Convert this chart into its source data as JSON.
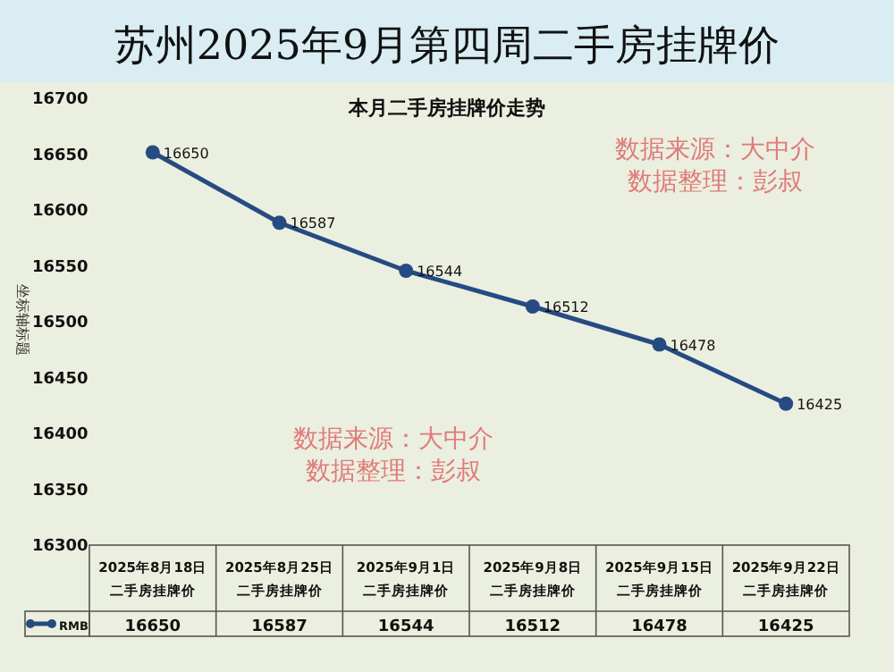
{
  "chart_data": {
    "type": "line",
    "title": "苏州2025年9月第四周二手房挂牌价",
    "subtitle": "本月二手房挂牌价走势",
    "ylabel": "坐标轴标题",
    "categories": [
      "2025年8月18日二手房挂牌价",
      "2025年8月25日二手房挂牌价",
      "2025年9月1日二手房挂牌价",
      "2025年9月8日二手房挂牌价",
      "2025年9月15日二手房挂牌价",
      "2025年9月22日二手房挂牌价"
    ],
    "series": [
      {
        "name": "RMB",
        "color": "#254b82",
        "values": [
          16650,
          16587,
          16544,
          16512,
          16478,
          16425
        ]
      }
    ],
    "ylim": [
      16300,
      16700
    ],
    "yticks": [
      16300,
      16350,
      16400,
      16450,
      16500,
      16550,
      16600,
      16650,
      16700
    ],
    "grid": false,
    "legend": "bottom",
    "marker": "circle",
    "line_style": "solid",
    "data_labels": true,
    "annotations": [
      "数据来源：大中介",
      "数据整理：彭叔",
      "数据来源：大中介",
      "数据整理：彭叔",
      {
        "text": "16650",
        "x": "2025年8月18日二手房挂牌价"
      },
      {
        "text": "16587",
        "x": "2025年8月25日二手房挂牌价"
      },
      {
        "text": "16544",
        "x": "2025年9月1日二手房挂牌价"
      },
      {
        "text": "16512",
        "x": "2025年9月8日二手房挂牌价"
      },
      {
        "text": "16478",
        "x": "2025年9月15日二手房挂牌价"
      },
      {
        "text": "16425",
        "x": "2025年9月22日二手房挂牌价"
      }
    ]
  }
}
